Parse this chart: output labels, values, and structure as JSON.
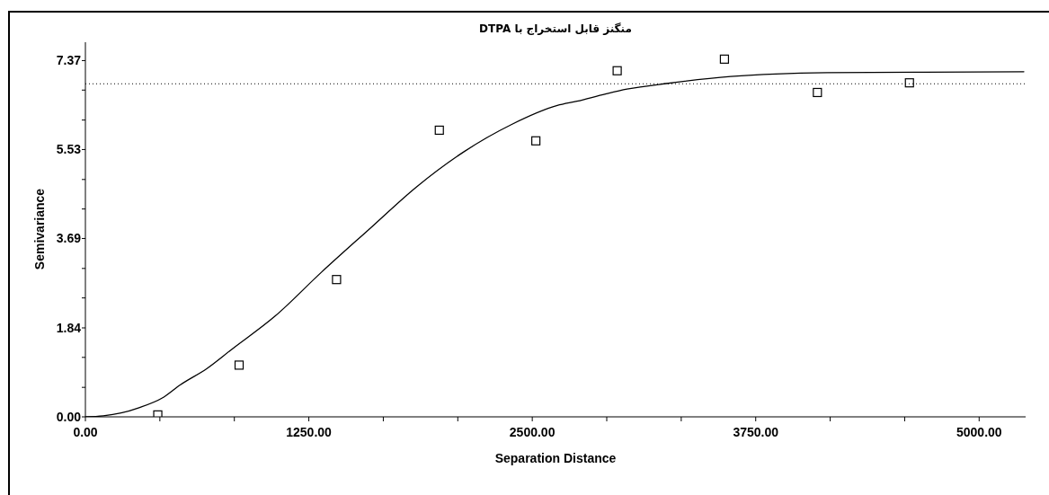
{
  "chart_data": {
    "type": "scatter",
    "title": "منگنز قابل استخراج با DTPA",
    "xlabel": "Separation Distance",
    "ylabel": "Semivariance",
    "xlim": [
      0,
      5260
    ],
    "ylim": [
      0,
      7.75
    ],
    "xticks": [
      {
        "value": 0,
        "label": "0.00"
      },
      {
        "value": 416.67,
        "label": null
      },
      {
        "value": 833.33,
        "label": null
      },
      {
        "value": 1250,
        "label": "1250.00"
      },
      {
        "value": 1666.67,
        "label": null
      },
      {
        "value": 2083.33,
        "label": null
      },
      {
        "value": 2500,
        "label": "2500.00"
      },
      {
        "value": 2916.67,
        "label": null
      },
      {
        "value": 3333.33,
        "label": null
      },
      {
        "value": 3750,
        "label": "3750.00"
      },
      {
        "value": 4166.67,
        "label": null
      },
      {
        "value": 4583.33,
        "label": null
      },
      {
        "value": 5000,
        "label": "5000.00"
      }
    ],
    "yticks": [
      {
        "value": 0,
        "label": "0.00"
      },
      {
        "value": 0.61,
        "label": null
      },
      {
        "value": 1.23,
        "label": null
      },
      {
        "value": 1.84,
        "label": "1.84"
      },
      {
        "value": 2.46,
        "label": null
      },
      {
        "value": 3.07,
        "label": null
      },
      {
        "value": 3.69,
        "label": "3.69"
      },
      {
        "value": 4.3,
        "label": null
      },
      {
        "value": 4.91,
        "label": null
      },
      {
        "value": 5.53,
        "label": "5.53"
      },
      {
        "value": 6.14,
        "label": null
      },
      {
        "value": 6.76,
        "label": null
      },
      {
        "value": 7.37,
        "label": "7.37"
      }
    ],
    "series": [
      {
        "type": "line",
        "color": "#000000",
        "marker": "none",
        "line_style": "solid",
        "x": [
          0,
          100,
          200,
          300,
          430,
          530,
          680,
          820,
          1060,
          1320,
          1590,
          1850,
          2120,
          2380,
          2640,
          2750,
          2910,
          3030,
          3260,
          3610,
          4150,
          4690,
          5250
        ],
        "values": [
          0,
          0.02,
          0.08,
          0.19,
          0.39,
          0.66,
          1.0,
          1.4,
          2.08,
          2.99,
          3.89,
          4.75,
          5.49,
          6.04,
          6.44,
          6.53,
          6.68,
          6.78,
          6.9,
          7.04,
          7.12,
          7.13,
          7.14
        ]
      },
      {
        "color": "#000000",
        "marker": "square",
        "x": [
          405,
          860,
          1405,
          1980,
          2520,
          2975,
          3575,
          4095,
          4610
        ],
        "values": [
          0.04,
          1.07,
          2.84,
          5.93,
          5.71,
          7.16,
          7.4,
          6.71,
          6.91
        ]
      }
    ],
    "ref_lines": [
      {
        "axis": "y",
        "value": 6.89,
        "color": "#000000",
        "line_style": "dotted"
      }
    ]
  }
}
